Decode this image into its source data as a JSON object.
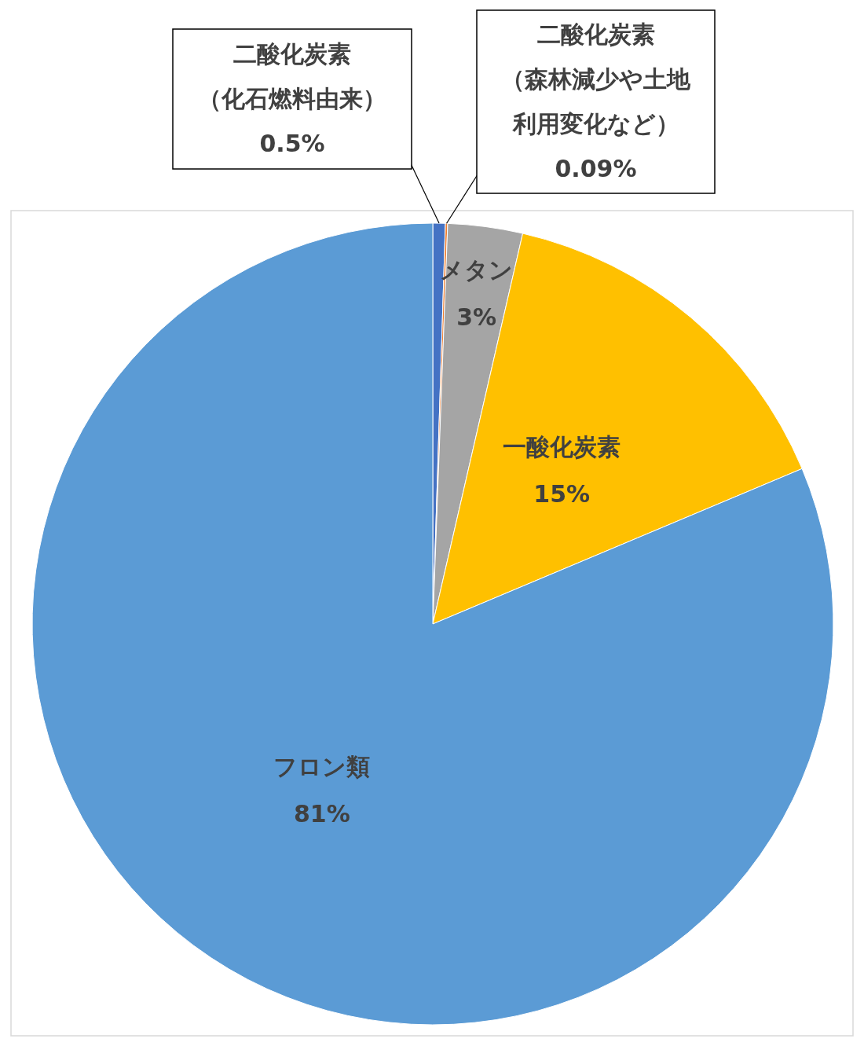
{
  "chart_data": {
    "type": "pie",
    "categories": [
      "二酸化炭素（化石燃料由来）",
      "二酸化炭素（森林減少や土地利用変化など）",
      "メタン",
      "一酸化炭素",
      "フロン類"
    ],
    "values": [
      0.5,
      0.09,
      3,
      15,
      81
    ],
    "value_labels": [
      "0.5%",
      "0.09%",
      "3%",
      "15%",
      "81%"
    ],
    "colors": [
      "#4472c4",
      "#ed7d31",
      "#a5a5a5",
      "#ffc000",
      "#5b9bd5"
    ],
    "legend": false
  }
}
